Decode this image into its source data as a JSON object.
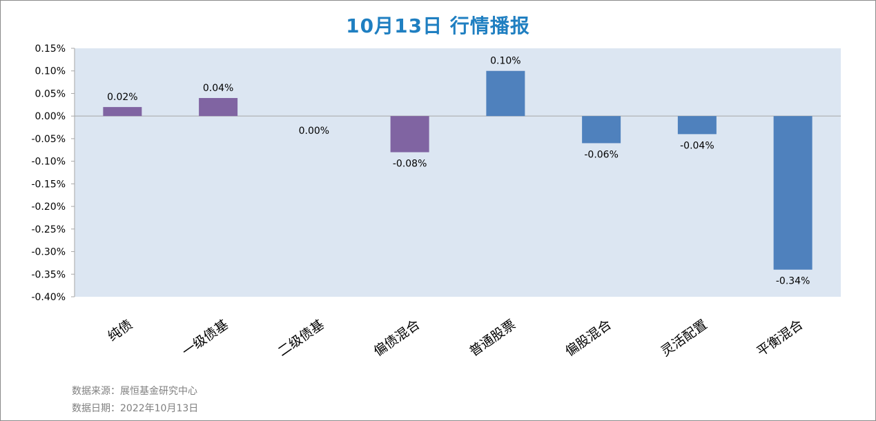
{
  "title": "10月13日  行情播报",
  "source_line": "数据来源：展恒基金研究中心",
  "date_line": "数据日期：2022年10月13日",
  "colors": {
    "purple": "#8064a2",
    "blue": "#4f81bd",
    "plot_bg": "#dce6f2"
  },
  "chart_data": {
    "type": "bar",
    "title": "10月13日  行情播报",
    "categories": [
      "纯债",
      "一级债基",
      "二级债基",
      "偏债混合",
      "普通股票",
      "偏股混合",
      "灵活配置",
      "平衡混合"
    ],
    "values": [
      0.02,
      0.04,
      0.0,
      -0.08,
      0.1,
      -0.06,
      -0.04,
      -0.34
    ],
    "data_labels": [
      "0.02%",
      "0.04%",
      "0.00%",
      "-0.08%",
      "0.10%",
      "-0.06%",
      "-0.04%",
      "-0.34%"
    ],
    "bar_colors": [
      "#8064a2",
      "#8064a2",
      "#8064a2",
      "#8064a2",
      "#4f81bd",
      "#4f81bd",
      "#4f81bd",
      "#4f81bd"
    ],
    "y_ticks": [
      0.15,
      0.1,
      0.05,
      0.0,
      -0.05,
      -0.1,
      -0.15,
      -0.2,
      -0.25,
      -0.3,
      -0.35,
      -0.4
    ],
    "y_tick_labels": [
      "0.15%",
      "0.10%",
      "0.05%",
      "0.00%",
      "-0.05%",
      "-0.10%",
      "-0.15%",
      "-0.20%",
      "-0.25%",
      "-0.30%",
      "-0.35%",
      "-0.40%"
    ],
    "ylim": [
      -0.4,
      0.15
    ],
    "xlabel": "",
    "ylabel": "",
    "grid": false,
    "legend": "none"
  }
}
